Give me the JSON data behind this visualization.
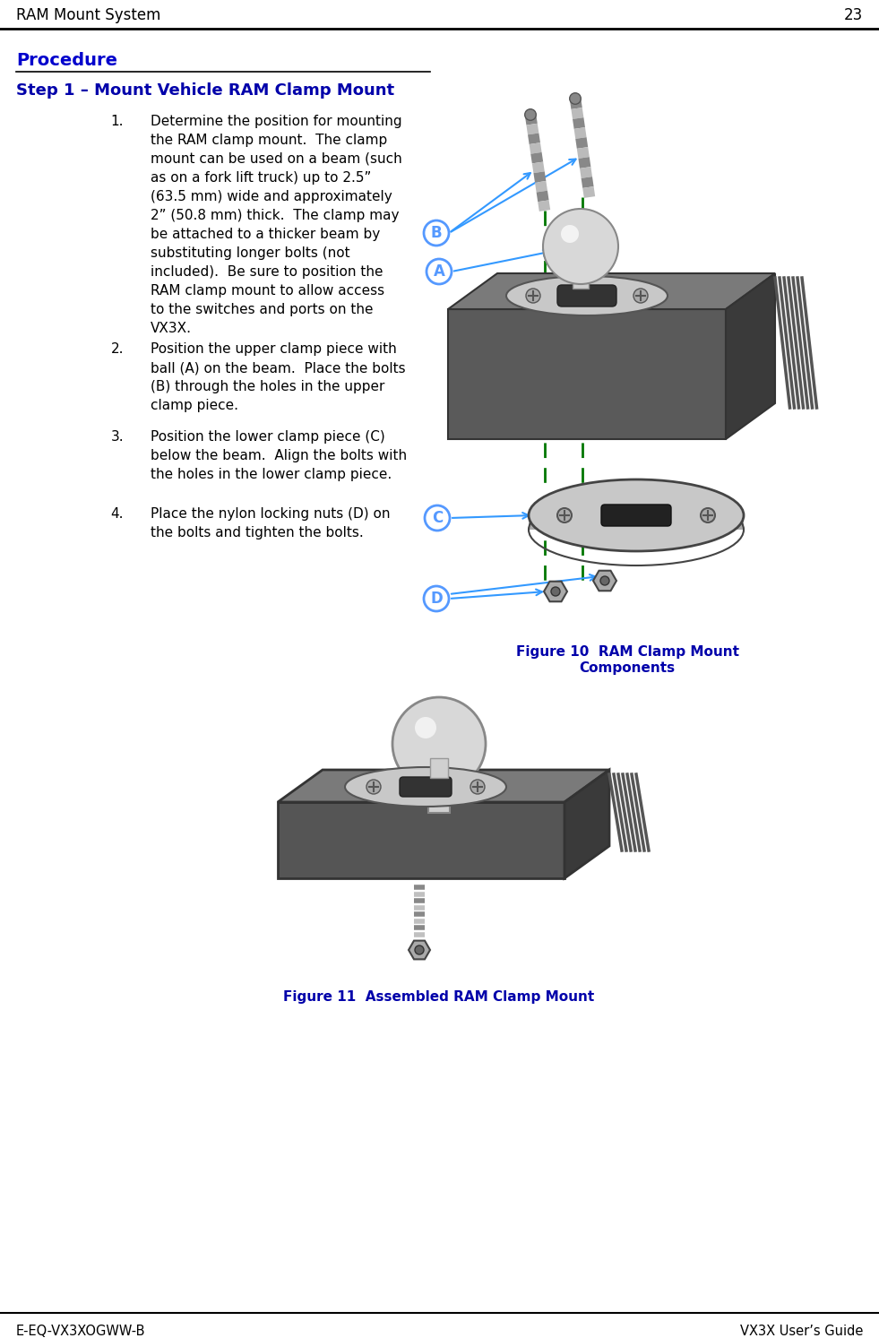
{
  "page_title": "RAM Mount System",
  "page_number": "23",
  "footer_left": "E-EQ-VX3XOGWW-B",
  "footer_right": "VX3X User’s Guide",
  "procedure_heading": "Procedure",
  "step_heading": "Step 1 – Mount Vehicle RAM Clamp Mount",
  "heading_color": "#0000CC",
  "step_heading_color": "#0000AA",
  "body_color": "#000000",
  "background_color": "#ffffff",
  "step1_text": "Determine the position for mounting\nthe RAM clamp mount.  The clamp\nmount can be used on a beam (such\nas on a fork lift truck) up to 2.5”\n(63.5 mm) wide and approximately\n2” (50.8 mm) thick.  The clamp may\nbe attached to a thicker beam by\nsubstituting longer bolts (not\nincluded).  Be sure to position the\nRAM clamp mount to allow access\nto the switches and ports on the\nVX3X.",
  "step2_text": "Position the upper clamp piece with\nball (A) on the beam.  Place the bolts\n(B) through the holes in the upper\nclamp piece.",
  "step3_text": "Position the lower clamp piece (C)\nbelow the beam.  Align the bolts with\nthe holes in the lower clamp piece.",
  "step4_text": "Place the nylon locking nuts (D) on\nthe bolts and tighten the bolts.",
  "figure10_caption_line1": "Figure 10  RAM Clamp Mount",
  "figure10_caption_line2": "Components",
  "figure11_caption": "Figure 11  Assembled RAM Clamp Mount",
  "figure_caption_color": "#0000AA",
  "label_circle_color": "#5599ff",
  "dashed_line_color": "#007700",
  "arrow_color": "#3399ff"
}
